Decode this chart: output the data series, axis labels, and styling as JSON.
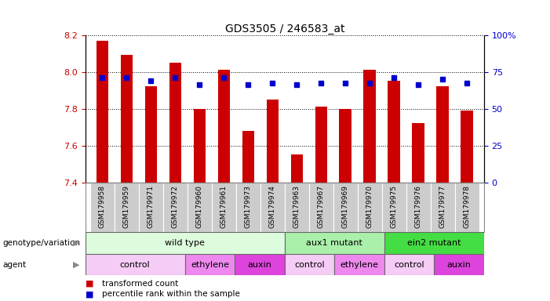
{
  "title": "GDS3505 / 246583_at",
  "samples": [
    "GSM179958",
    "GSM179959",
    "GSM179971",
    "GSM179972",
    "GSM179960",
    "GSM179961",
    "GSM179973",
    "GSM179974",
    "GSM179963",
    "GSM179967",
    "GSM179969",
    "GSM179970",
    "GSM179975",
    "GSM179976",
    "GSM179977",
    "GSM179978"
  ],
  "bar_values": [
    8.17,
    8.09,
    7.92,
    8.05,
    7.8,
    8.01,
    7.68,
    7.85,
    7.55,
    7.81,
    7.8,
    8.01,
    7.95,
    7.72,
    7.92,
    7.79
  ],
  "dot_values": [
    7.97,
    7.97,
    7.95,
    7.97,
    7.93,
    7.97,
    7.93,
    7.94,
    7.93,
    7.94,
    7.94,
    7.94,
    7.97,
    7.93,
    7.96,
    7.94
  ],
  "ylim_left": [
    7.4,
    8.2
  ],
  "ylim_right": [
    0,
    100
  ],
  "yticks_left": [
    7.4,
    7.6,
    7.8,
    8.0,
    8.2
  ],
  "yticks_right": [
    0,
    25,
    50,
    75,
    100
  ],
  "bar_color": "#cc0000",
  "dot_color": "#0000cc",
  "bar_bottom": 7.4,
  "genotype_groups": [
    {
      "label": "wild type",
      "start": 0,
      "end": 8,
      "color": "#ddfcdd"
    },
    {
      "label": "aux1 mutant",
      "start": 8,
      "end": 12,
      "color": "#aaf0aa"
    },
    {
      "label": "ein2 mutant",
      "start": 12,
      "end": 16,
      "color": "#44dd44"
    }
  ],
  "agent_groups": [
    {
      "label": "control",
      "start": 0,
      "end": 4,
      "color": "#f5ccf5"
    },
    {
      "label": "ethylene",
      "start": 4,
      "end": 6,
      "color": "#ee88ee"
    },
    {
      "label": "auxin",
      "start": 6,
      "end": 8,
      "color": "#dd44dd"
    },
    {
      "label": "control",
      "start": 8,
      "end": 10,
      "color": "#f5ccf5"
    },
    {
      "label": "ethylene",
      "start": 10,
      "end": 12,
      "color": "#ee88ee"
    },
    {
      "label": "control",
      "start": 12,
      "end": 14,
      "color": "#f5ccf5"
    },
    {
      "label": "auxin",
      "start": 14,
      "end": 16,
      "color": "#dd44dd"
    }
  ],
  "legend_transformed": "transformed count",
  "legend_percentile": "percentile rank within the sample",
  "label_genotype": "genotype/variation",
  "label_agent": "agent",
  "tick_color_left": "#cc0000",
  "tick_color_right": "#0000cc",
  "sample_bg_color": "#cccccc",
  "sample_border_color": "#aaaaaa"
}
